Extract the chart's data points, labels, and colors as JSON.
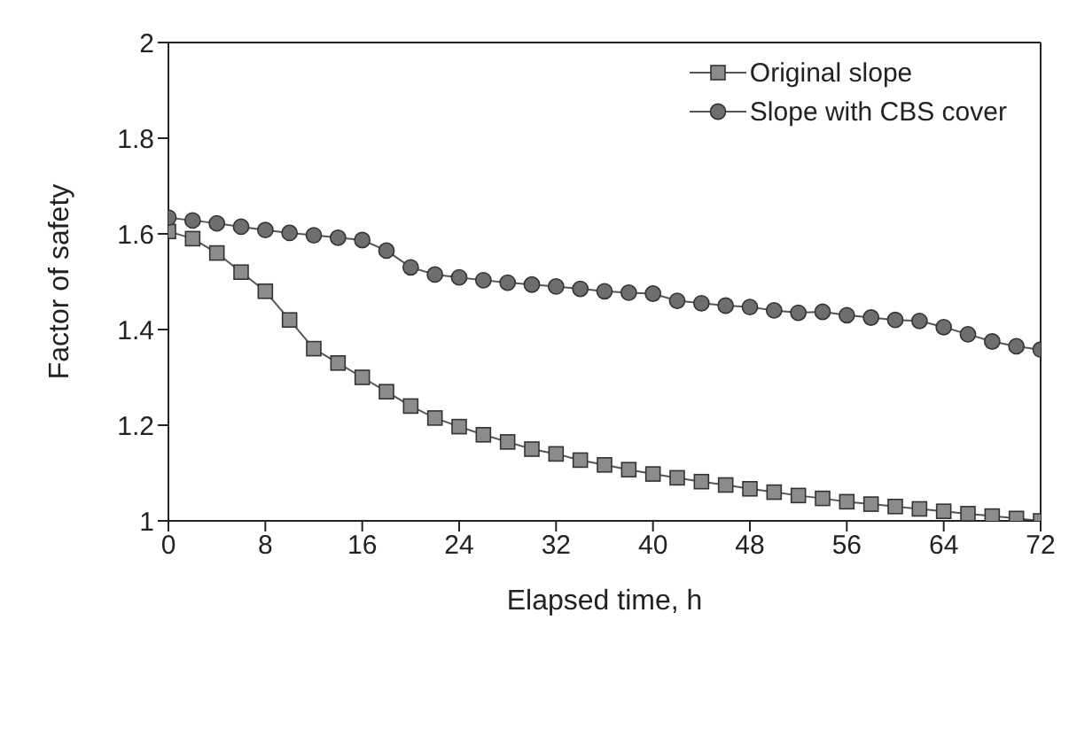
{
  "chart_data": {
    "type": "line",
    "xlabel": "Elapsed time, h",
    "ylabel": "Factor of safety",
    "x": [
      0,
      2,
      4,
      6,
      8,
      10,
      12,
      14,
      16,
      18,
      20,
      22,
      24,
      26,
      28,
      30,
      32,
      34,
      36,
      38,
      40,
      42,
      44,
      46,
      48,
      50,
      52,
      54,
      56,
      58,
      60,
      62,
      64,
      66,
      68,
      70,
      72
    ],
    "series": [
      {
        "name": "Original slope",
        "color": "#8c8c8c",
        "marker": "square",
        "values": [
          1.605,
          1.59,
          1.56,
          1.52,
          1.48,
          1.42,
          1.36,
          1.33,
          1.3,
          1.27,
          1.24,
          1.215,
          1.197,
          1.18,
          1.165,
          1.15,
          1.14,
          1.127,
          1.117,
          1.107,
          1.098,
          1.09,
          1.082,
          1.075,
          1.067,
          1.06,
          1.053,
          1.047,
          1.04,
          1.035,
          1.03,
          1.025,
          1.02,
          1.015,
          1.01,
          1.005,
          1.0
        ]
      },
      {
        "name": "Slope with CBS cover",
        "color": "#6e6e6e",
        "marker": "circle",
        "values": [
          1.634,
          1.628,
          1.622,
          1.615,
          1.608,
          1.602,
          1.597,
          1.592,
          1.587,
          1.565,
          1.53,
          1.515,
          1.509,
          1.503,
          1.498,
          1.494,
          1.49,
          1.485,
          1.48,
          1.477,
          1.475,
          1.46,
          1.455,
          1.45,
          1.447,
          1.44,
          1.435,
          1.437,
          1.43,
          1.425,
          1.42,
          1.418,
          1.405,
          1.39,
          1.375,
          1.365,
          1.358
        ]
      }
    ],
    "xlim": [
      0,
      72
    ],
    "xticks": [
      0,
      8,
      16,
      24,
      32,
      40,
      48,
      56,
      64,
      72
    ],
    "ylim": [
      1,
      2
    ],
    "yticks": [
      1,
      1.2,
      1.4,
      1.6,
      1.8,
      2
    ],
    "grid": false,
    "legend": "top right",
    "line_style": "solid"
  }
}
